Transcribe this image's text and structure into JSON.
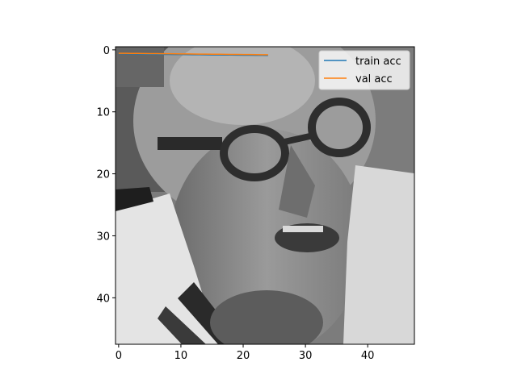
{
  "chart_data": {
    "type": "line",
    "title": "",
    "xlabel": "",
    "ylabel": "",
    "background_image": "grayscale-48x48-face-image",
    "xlim": [
      -0.5,
      47.5
    ],
    "ylim": [
      47.5,
      -0.5
    ],
    "y_inverted": true,
    "grid": false,
    "x_ticks": [
      0,
      10,
      20,
      30,
      40
    ],
    "y_ticks": [
      0,
      10,
      20,
      30,
      40
    ],
    "x_tick_labels": [
      "0",
      "10",
      "20",
      "30",
      "40"
    ],
    "y_tick_labels": [
      "0",
      "10",
      "20",
      "30",
      "40"
    ],
    "legend_position": "upper-right",
    "series": [
      {
        "name": "train acc",
        "color": "#1f77b4",
        "x": [
          0,
          1,
          2,
          3,
          4,
          5,
          6,
          7,
          8,
          9,
          10,
          11,
          12,
          13,
          14,
          15,
          16,
          17,
          18,
          19,
          20,
          21,
          22,
          23,
          24
        ],
        "y": [
          0.6,
          0.62,
          0.64,
          0.66,
          0.68,
          0.7,
          0.72,
          0.73,
          0.74,
          0.75,
          0.76,
          0.77,
          0.78,
          0.79,
          0.8,
          0.81,
          0.82,
          0.83,
          0.84,
          0.85,
          0.86,
          0.87,
          0.88,
          0.89,
          0.9
        ]
      },
      {
        "name": "val acc",
        "color": "#ff7f0e",
        "x": [
          0,
          1,
          2,
          3,
          4,
          5,
          6,
          7,
          8,
          9,
          10,
          11,
          12,
          13,
          14,
          15,
          16,
          17,
          18,
          19,
          20,
          21,
          22,
          23,
          24
        ],
        "y": [
          0.55,
          0.56,
          0.57,
          0.58,
          0.59,
          0.6,
          0.61,
          0.62,
          0.63,
          0.64,
          0.65,
          0.66,
          0.67,
          0.68,
          0.69,
          0.7,
          0.71,
          0.72,
          0.73,
          0.74,
          0.75,
          0.76,
          0.77,
          0.78,
          0.79
        ]
      }
    ]
  }
}
